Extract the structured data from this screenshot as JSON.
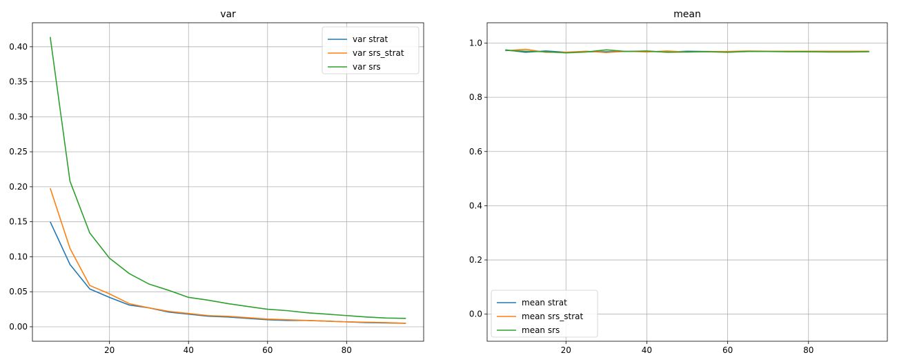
{
  "chart_data": [
    {
      "type": "line",
      "title": "var",
      "xlabel": "",
      "ylabel": "",
      "xlim": [
        0.5,
        99.5
      ],
      "ylim": [
        -0.0207,
        0.4343
      ],
      "xticks": [
        20,
        40,
        60,
        80
      ],
      "yticks": [
        0.0,
        0.05,
        0.1,
        0.15,
        0.2,
        0.25,
        0.3,
        0.35,
        0.4
      ],
      "ytick_labels": [
        "0.00",
        "0.05",
        "0.10",
        "0.15",
        "0.20",
        "0.25",
        "0.30",
        "0.35",
        "0.40"
      ],
      "grid": true,
      "legend": "top-right",
      "x": [
        5,
        10,
        15,
        20,
        25,
        30,
        35,
        40,
        45,
        50,
        55,
        60,
        65,
        70,
        75,
        80,
        85,
        90,
        95
      ],
      "series": [
        {
          "name": "var strat",
          "color": "#1f77b4",
          "values": [
            0.15,
            0.089,
            0.054,
            0.042,
            0.031,
            0.027,
            0.021,
            0.018,
            0.015,
            0.014,
            0.012,
            0.01,
            0.009,
            0.009,
            0.008,
            0.007,
            0.006,
            0.0055,
            0.005
          ]
        },
        {
          "name": "var srs_strat",
          "color": "#ff7f0e",
          "values": [
            0.198,
            0.112,
            0.059,
            0.047,
            0.033,
            0.027,
            0.022,
            0.019,
            0.016,
            0.015,
            0.013,
            0.011,
            0.01,
            0.009,
            0.008,
            0.007,
            0.0065,
            0.006,
            0.005
          ]
        },
        {
          "name": "var srs",
          "color": "#2ca02c",
          "values": [
            0.414,
            0.208,
            0.134,
            0.098,
            0.076,
            0.061,
            0.052,
            0.042,
            0.038,
            0.033,
            0.029,
            0.025,
            0.023,
            0.02,
            0.018,
            0.016,
            0.014,
            0.0125,
            0.012
          ]
        }
      ]
    },
    {
      "type": "line",
      "title": "mean",
      "xlabel": "",
      "ylabel": "",
      "xlim": [
        0.5,
        99.5
      ],
      "ylim": [
        -0.1,
        1.075
      ],
      "xticks": [
        20,
        40,
        60,
        80
      ],
      "yticks": [
        0.0,
        0.2,
        0.4,
        0.6,
        0.8,
        1.0
      ],
      "ytick_labels": [
        "0.0",
        "0.2",
        "0.4",
        "0.6",
        "0.8",
        "1.0"
      ],
      "grid": true,
      "legend": "bottom-left",
      "x": [
        5,
        10,
        15,
        20,
        25,
        30,
        35,
        40,
        45,
        50,
        55,
        60,
        65,
        70,
        75,
        80,
        85,
        90,
        95
      ],
      "series": [
        {
          "name": "mean strat",
          "color": "#1f77b4",
          "values": [
            0.975,
            0.966,
            0.971,
            0.966,
            0.968,
            0.968,
            0.969,
            0.97,
            0.967,
            0.97,
            0.969,
            0.968,
            0.969,
            0.969,
            0.969,
            0.968,
            0.969,
            0.969,
            0.969
          ]
        },
        {
          "name": "mean srs_strat",
          "color": "#ff7f0e",
          "values": [
            0.972,
            0.977,
            0.966,
            0.966,
            0.97,
            0.965,
            0.97,
            0.967,
            0.971,
            0.967,
            0.969,
            0.969,
            0.971,
            0.97,
            0.97,
            0.97,
            0.97,
            0.97,
            0.97
          ]
        },
        {
          "name": "mean srs",
          "color": "#2ca02c",
          "values": [
            0.973,
            0.97,
            0.968,
            0.964,
            0.967,
            0.975,
            0.969,
            0.971,
            0.966,
            0.967,
            0.968,
            0.966,
            0.969,
            0.969,
            0.968,
            0.968,
            0.967,
            0.967,
            0.968
          ]
        }
      ]
    }
  ]
}
